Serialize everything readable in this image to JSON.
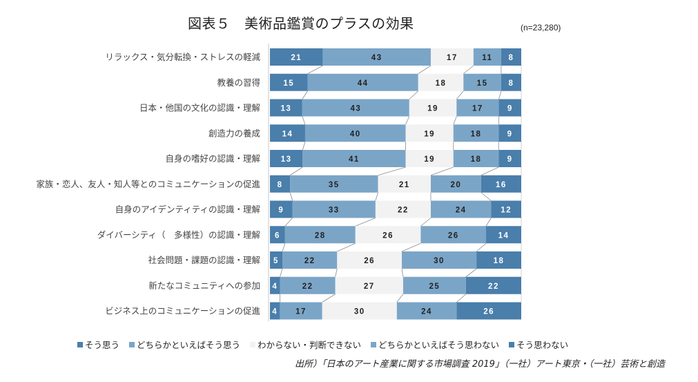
{
  "title": "図表５　美術品鑑賞のプラスの効果",
  "sample_size": "(n=23,280)",
  "source": "出所）「日本のアート産業に関する市場調査 2019」（一社）アート東京・（一社）芸術と創造",
  "chart_data": {
    "type": "bar",
    "orientation": "horizontal",
    "stacked": "100%",
    "title": "図表５　美術品鑑賞のプラスの効果",
    "subtitle": "(n=23,280)",
    "xlabel": "",
    "ylabel": "",
    "xlim": [
      0,
      100
    ],
    "grid": false,
    "legend_position": "bottom",
    "connector_lines": true,
    "categories": [
      "リラックス・気分転換・ストレスの軽減",
      "教養の習得",
      "日本・他国の文化の認識・理解",
      "創造力の養成",
      "自身の嗜好の認識・理解",
      "家族・恋人、友人・知人等とのコミュニケーションの促進",
      "自身のアイデンティティの認識・理解",
      "ダイバーシティ（　多様性）の認識・理解",
      "社会問題・課題の認識・理解",
      "新たなコミュニティへの参加",
      "ビジネス上のコミュニケーションの促進"
    ],
    "series": [
      {
        "name": "そう思う",
        "color": "#4a7eab",
        "label_color": "#ffffff",
        "values": [
          21,
          15,
          13,
          14,
          13,
          8,
          9,
          6,
          5,
          4,
          4
        ]
      },
      {
        "name": "どちらかといえばそう思う",
        "color": "#7ba5c7",
        "label_color": "#222222",
        "values": [
          43,
          44,
          43,
          40,
          41,
          35,
          33,
          28,
          22,
          22,
          17
        ]
      },
      {
        "name": "わからない・判断できない",
        "color": "#f2f2f2",
        "label_color": "#222222",
        "values": [
          17,
          18,
          19,
          19,
          19,
          21,
          22,
          26,
          26,
          27,
          30
        ]
      },
      {
        "name": "どちらかといえばそう思わない",
        "color": "#7ba5c7",
        "label_color": "#222222",
        "values": [
          11,
          15,
          17,
          18,
          18,
          20,
          24,
          26,
          30,
          25,
          24
        ]
      },
      {
        "name": "そう思わない",
        "color": "#4a7eab",
        "label_color": "#ffffff",
        "values": [
          8,
          8,
          9,
          9,
          9,
          16,
          12,
          14,
          18,
          22,
          26
        ]
      }
    ]
  }
}
